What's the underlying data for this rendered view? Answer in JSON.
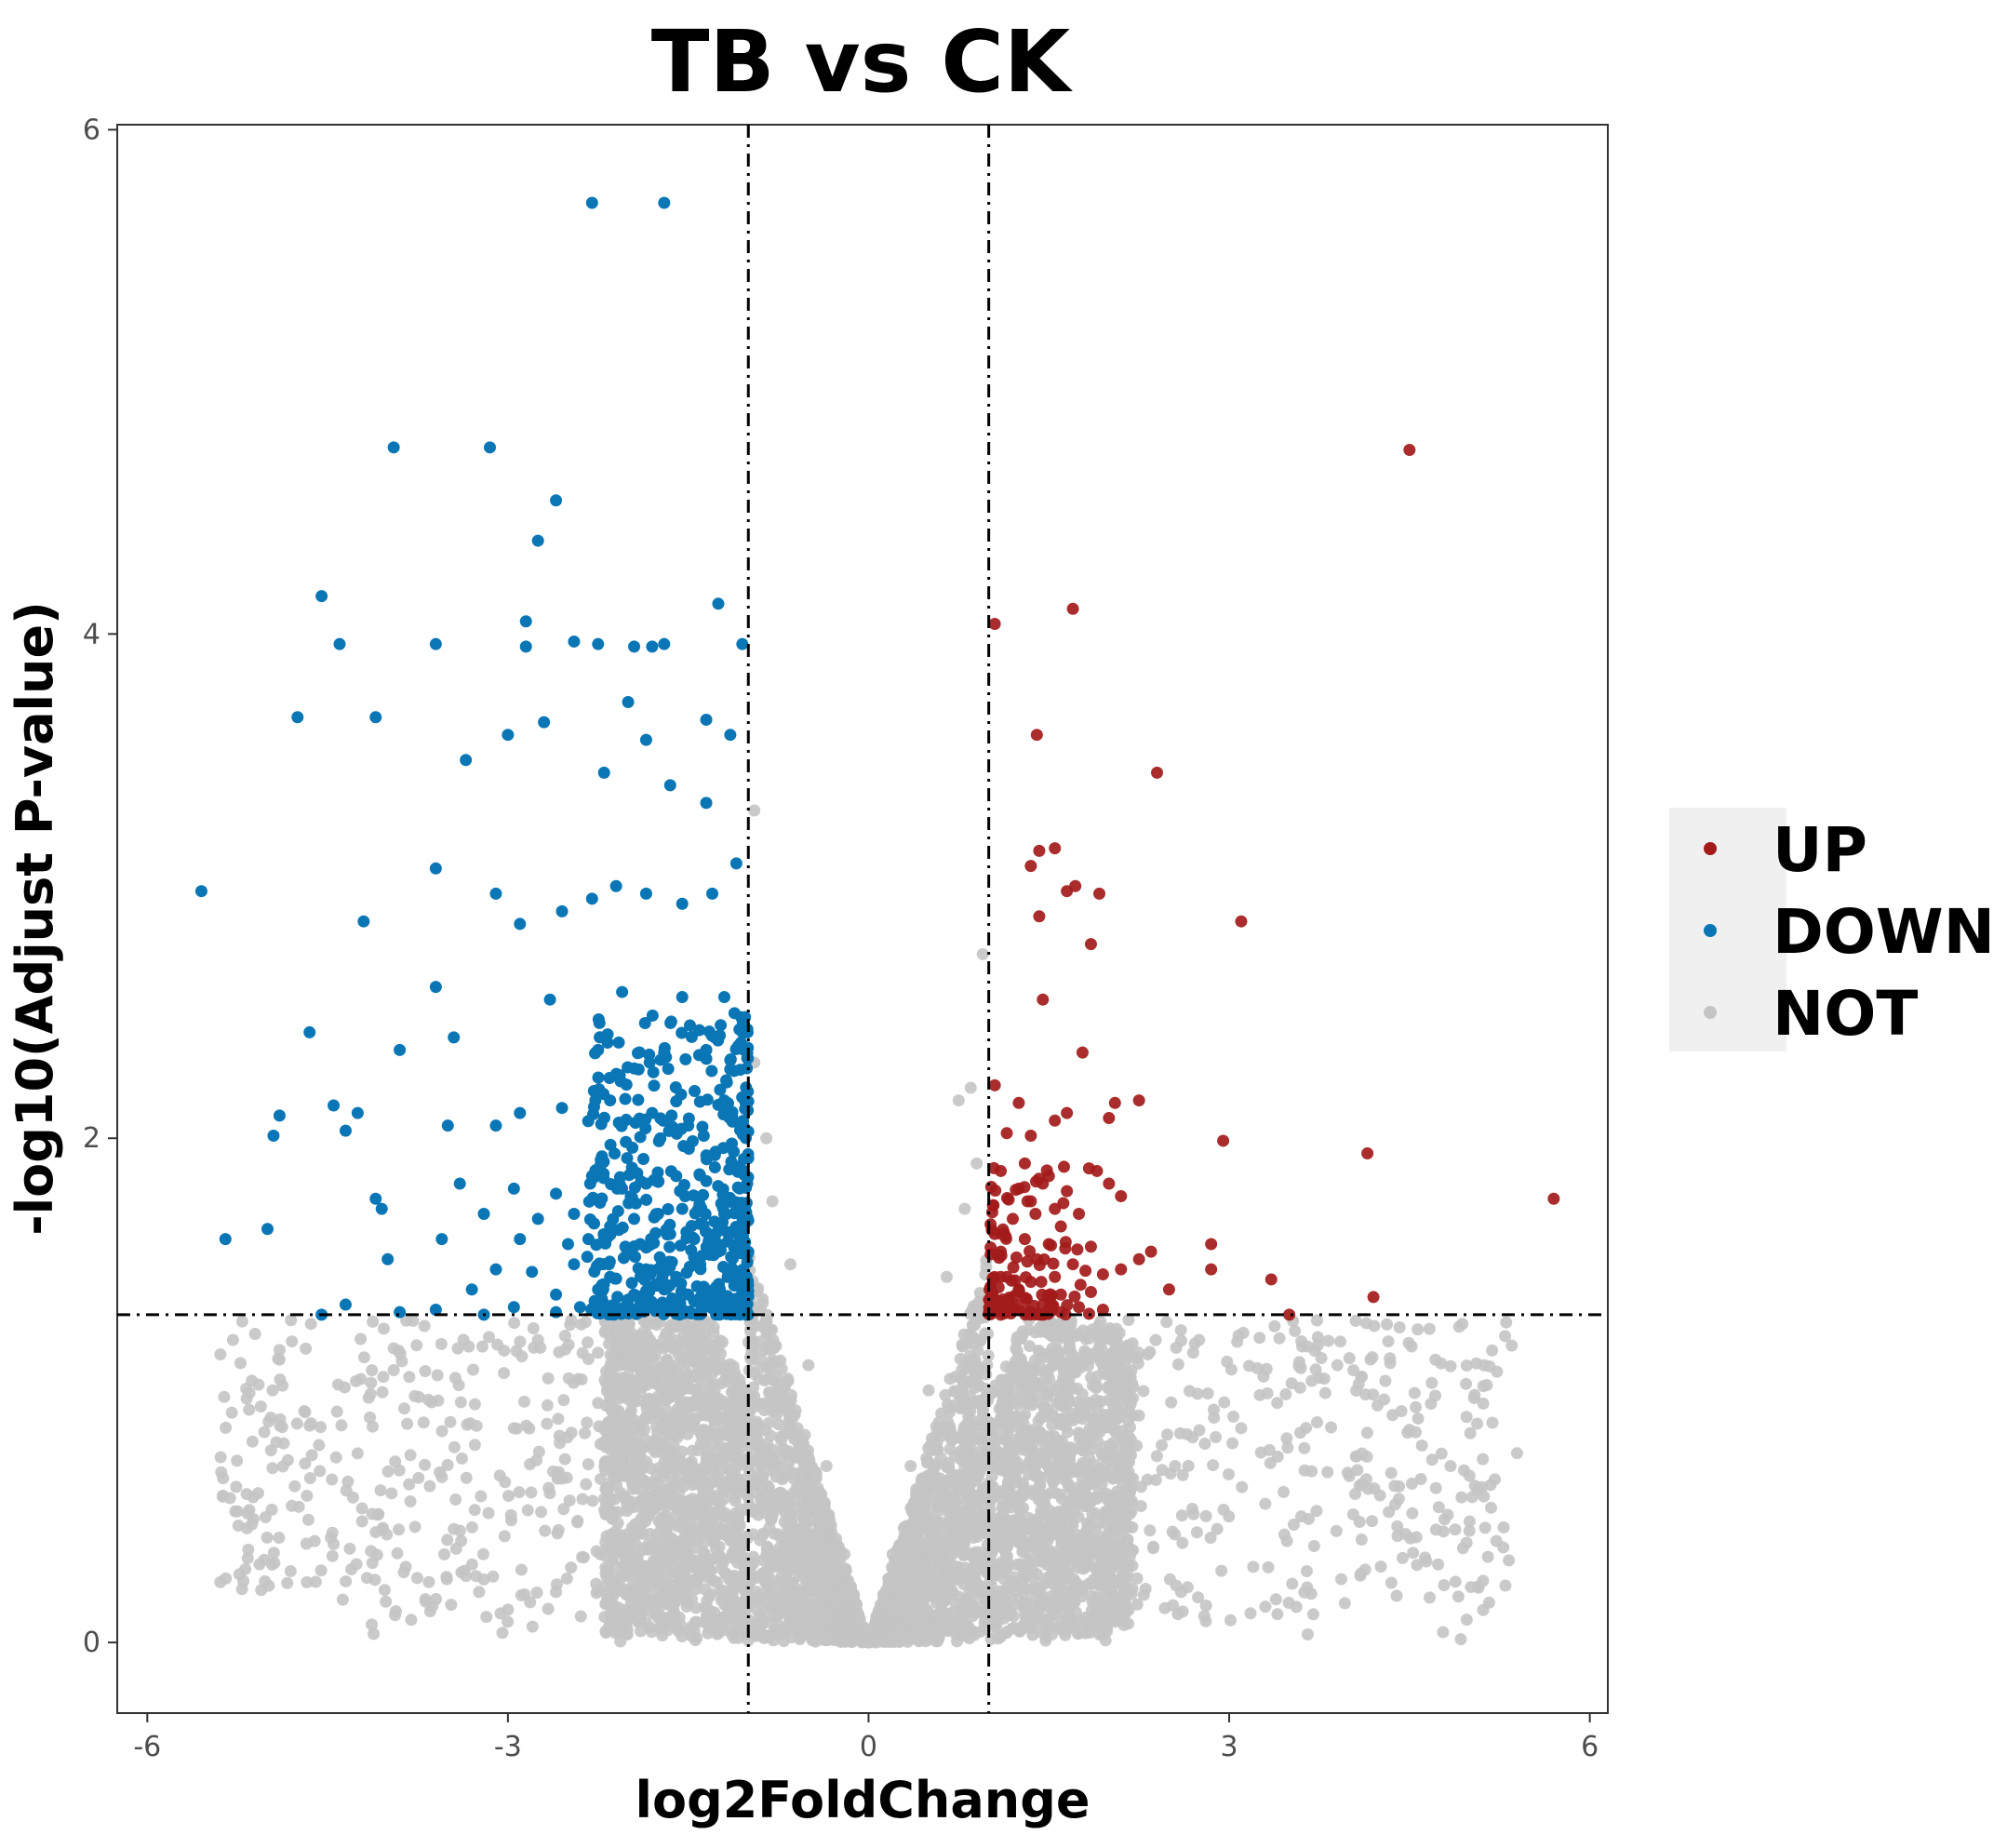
{
  "chart_data": {
    "type": "scatter",
    "title": "TB vs CK",
    "xlabel": "log2FoldChange",
    "ylabel": "-log10(Adjust P-value)",
    "xlim": [
      -6.25,
      6.15
    ],
    "ylim": [
      -0.28,
      6.02
    ],
    "x_ticks": [
      -6,
      -3,
      0,
      3,
      6
    ],
    "y_ticks": [
      0,
      2,
      4,
      6
    ],
    "thresholds": {
      "log2fc": [
        -1,
        1
      ],
      "neg_log10_p": 1.3
    },
    "grid": false,
    "legend_position": "right",
    "legend": [
      {
        "name": "UP",
        "color": "#a31a1a"
      },
      {
        "name": "DOWN",
        "color": "#0a76b5"
      },
      {
        "name": "NOT",
        "color": "#c4c4c4"
      }
    ],
    "series": [
      {
        "name": "UP",
        "color": "#a31a1a",
        "points": [
          [
            4.5,
            4.73
          ],
          [
            1.7,
            4.1
          ],
          [
            1.05,
            4.04
          ],
          [
            1.4,
            3.6
          ],
          [
            2.4,
            3.45
          ],
          [
            1.55,
            3.15
          ],
          [
            1.42,
            3.14
          ],
          [
            1.35,
            3.08
          ],
          [
            1.65,
            2.98
          ],
          [
            1.72,
            3.0
          ],
          [
            1.92,
            2.97
          ],
          [
            3.1,
            2.86
          ],
          [
            1.42,
            2.88
          ],
          [
            1.85,
            2.77
          ],
          [
            1.45,
            2.55
          ],
          [
            1.78,
            2.34
          ],
          [
            2.25,
            2.15
          ],
          [
            2.05,
            2.14
          ],
          [
            2.0,
            2.08
          ],
          [
            1.05,
            2.21
          ],
          [
            1.25,
            2.14
          ],
          [
            1.65,
            2.1
          ],
          [
            1.55,
            2.07
          ],
          [
            2.95,
            1.99
          ],
          [
            1.15,
            2.02
          ],
          [
            1.35,
            2.01
          ],
          [
            4.15,
            1.94
          ],
          [
            1.1,
            1.87
          ],
          [
            1.3,
            1.9
          ],
          [
            1.5,
            1.85
          ],
          [
            1.9,
            1.87
          ],
          [
            2.0,
            1.82
          ],
          [
            1.25,
            1.8
          ],
          [
            1.45,
            1.82
          ],
          [
            1.65,
            1.79
          ],
          [
            2.1,
            1.77
          ],
          [
            5.7,
            1.76
          ],
          [
            1.35,
            1.75
          ],
          [
            1.55,
            1.72
          ],
          [
            1.75,
            1.7
          ],
          [
            1.2,
            1.68
          ],
          [
            1.6,
            1.65
          ],
          [
            1.05,
            1.62
          ],
          [
            1.3,
            1.6
          ],
          [
            1.5,
            1.58
          ],
          [
            1.85,
            1.57
          ],
          [
            2.85,
            1.58
          ],
          [
            2.35,
            1.55
          ],
          [
            1.1,
            1.55
          ],
          [
            1.4,
            1.52
          ],
          [
            1.7,
            1.5
          ],
          [
            2.1,
            1.48
          ],
          [
            2.25,
            1.52
          ],
          [
            2.85,
            1.48
          ],
          [
            1.15,
            1.45
          ],
          [
            1.35,
            1.43
          ],
          [
            1.55,
            1.45
          ],
          [
            1.95,
            1.46
          ],
          [
            3.35,
            1.44
          ],
          [
            1.25,
            1.4
          ],
          [
            1.6,
            1.38
          ],
          [
            1.85,
            1.39
          ],
          [
            2.5,
            1.4
          ],
          [
            1.05,
            1.35
          ],
          [
            1.45,
            1.34
          ],
          [
            1.75,
            1.33
          ],
          [
            4.2,
            1.37
          ],
          [
            1.15,
            1.32
          ],
          [
            1.35,
            1.31
          ],
          [
            1.6,
            1.31
          ],
          [
            1.95,
            1.32
          ],
          [
            3.5,
            1.3
          ]
        ]
      },
      {
        "name": "DOWN",
        "color": "#0a76b5",
        "points": [
          [
            -2.3,
            5.71
          ],
          [
            -1.7,
            5.71
          ],
          [
            -3.95,
            4.74
          ],
          [
            -3.15,
            4.74
          ],
          [
            -2.6,
            4.53
          ],
          [
            -2.75,
            4.37
          ],
          [
            -4.55,
            4.15
          ],
          [
            -1.25,
            4.12
          ],
          [
            -2.85,
            4.05
          ],
          [
            -4.4,
            3.96
          ],
          [
            -3.6,
            3.96
          ],
          [
            -2.85,
            3.95
          ],
          [
            -2.45,
            3.97
          ],
          [
            -2.25,
            3.96
          ],
          [
            -1.95,
            3.95
          ],
          [
            -1.8,
            3.95
          ],
          [
            -1.7,
            3.96
          ],
          [
            -1.05,
            3.96
          ],
          [
            -2.0,
            3.73
          ],
          [
            -4.75,
            3.67
          ],
          [
            -4.1,
            3.67
          ],
          [
            -2.7,
            3.65
          ],
          [
            -1.35,
            3.66
          ],
          [
            -1.15,
            3.6
          ],
          [
            -3.0,
            3.6
          ],
          [
            -1.85,
            3.58
          ],
          [
            -3.35,
            3.5
          ],
          [
            -2.2,
            3.45
          ],
          [
            -1.65,
            3.4
          ],
          [
            -1.35,
            3.33
          ],
          [
            -5.55,
            2.98
          ],
          [
            -3.6,
            3.07
          ],
          [
            -4.2,
            2.86
          ],
          [
            -3.1,
            2.97
          ],
          [
            -2.9,
            2.85
          ],
          [
            -2.55,
            2.9
          ],
          [
            -2.3,
            2.95
          ],
          [
            -2.1,
            3.0
          ],
          [
            -1.85,
            2.97
          ],
          [
            -1.55,
            2.93
          ],
          [
            -1.3,
            2.97
          ],
          [
            -1.1,
            3.09
          ],
          [
            -3.6,
            2.6
          ],
          [
            -2.65,
            2.55
          ],
          [
            -2.05,
            2.58
          ],
          [
            -1.55,
            2.56
          ],
          [
            -1.2,
            2.56
          ],
          [
            -4.65,
            2.42
          ],
          [
            -3.45,
            2.4
          ],
          [
            -3.9,
            2.35
          ],
          [
            -2.25,
            2.35
          ],
          [
            -1.7,
            2.34
          ],
          [
            -1.35,
            2.35
          ],
          [
            -4.9,
            2.09
          ],
          [
            -4.95,
            2.01
          ],
          [
            -4.45,
            2.13
          ],
          [
            -4.25,
            2.1
          ],
          [
            -4.35,
            2.03
          ],
          [
            -3.5,
            2.05
          ],
          [
            -3.1,
            2.05
          ],
          [
            -2.9,
            2.1
          ],
          [
            -2.55,
            2.12
          ],
          [
            -2.15,
            2.15
          ],
          [
            -1.8,
            2.1
          ],
          [
            -1.5,
            2.05
          ],
          [
            -1.2,
            2.15
          ],
          [
            -3.4,
            1.82
          ],
          [
            -2.95,
            1.8
          ],
          [
            -2.6,
            1.78
          ],
          [
            -2.3,
            1.85
          ],
          [
            -2.05,
            1.8
          ],
          [
            -1.85,
            1.82
          ],
          [
            -1.6,
            1.85
          ],
          [
            -1.35,
            1.83
          ],
          [
            -1.1,
            1.88
          ],
          [
            -4.1,
            1.76
          ],
          [
            -4.05,
            1.72
          ],
          [
            -3.2,
            1.7
          ],
          [
            -2.75,
            1.68
          ],
          [
            -2.45,
            1.7
          ],
          [
            -2.15,
            1.65
          ],
          [
            -1.95,
            1.68
          ],
          [
            -1.75,
            1.7
          ],
          [
            -1.55,
            1.72
          ],
          [
            -1.4,
            1.66
          ],
          [
            -1.2,
            1.7
          ],
          [
            -5.0,
            1.64
          ],
          [
            -5.35,
            1.6
          ],
          [
            -3.55,
            1.6
          ],
          [
            -2.9,
            1.6
          ],
          [
            -2.5,
            1.58
          ],
          [
            -2.2,
            1.6
          ],
          [
            -1.9,
            1.58
          ],
          [
            -1.65,
            1.62
          ],
          [
            -1.45,
            1.6
          ],
          [
            -1.25,
            1.55
          ],
          [
            -1.05,
            1.58
          ],
          [
            -4.0,
            1.52
          ],
          [
            -3.1,
            1.48
          ],
          [
            -2.8,
            1.47
          ],
          [
            -2.45,
            1.5
          ],
          [
            -2.15,
            1.45
          ],
          [
            -1.85,
            1.48
          ],
          [
            -1.6,
            1.45
          ],
          [
            -1.4,
            1.5
          ],
          [
            -1.15,
            1.46
          ],
          [
            -3.3,
            1.4
          ],
          [
            -2.6,
            1.38
          ],
          [
            -2.25,
            1.4
          ],
          [
            -1.95,
            1.38
          ],
          [
            -1.7,
            1.4
          ],
          [
            -1.5,
            1.38
          ],
          [
            -1.25,
            1.4
          ],
          [
            -1.05,
            1.37
          ],
          [
            -4.35,
            1.34
          ],
          [
            -3.6,
            1.32
          ],
          [
            -2.95,
            1.33
          ],
          [
            -2.4,
            1.33
          ],
          [
            -2.05,
            1.32
          ],
          [
            -1.8,
            1.34
          ],
          [
            -1.55,
            1.32
          ],
          [
            -1.3,
            1.33
          ],
          [
            -1.1,
            1.32
          ],
          [
            -4.55,
            1.3
          ],
          [
            -3.9,
            1.31
          ],
          [
            -3.2,
            1.3
          ],
          [
            -2.6,
            1.31
          ]
        ]
      },
      {
        "name": "NOT",
        "color": "#c4c4c4",
        "points": [
          [
            -0.95,
            3.3
          ],
          [
            0.95,
            2.73
          ],
          [
            -0.95,
            2.3
          ],
          [
            0.85,
            2.2
          ],
          [
            -0.85,
            2.0
          ],
          [
            0.75,
            2.15
          ],
          [
            0.9,
            1.9
          ],
          [
            -0.8,
            1.75
          ],
          [
            0.8,
            1.72
          ],
          [
            -0.65,
            1.5
          ],
          [
            0.65,
            1.45
          ],
          [
            -0.5,
            1.1
          ],
          [
            0.5,
            1.0
          ],
          [
            -0.35,
            0.7
          ],
          [
            0.35,
            0.7
          ],
          [
            -0.2,
            0.35
          ],
          [
            0.2,
            0.35
          ],
          [
            -0.1,
            0.15
          ],
          [
            0.1,
            0.15
          ],
          [
            0.0,
            0.02
          ],
          [
            -4.9,
            1.16
          ],
          [
            -5.15,
            0.99
          ],
          [
            -4.65,
            0.86
          ],
          [
            -5.25,
            0.52
          ],
          [
            -4.45,
            0.39
          ],
          [
            -3.95,
            1.08
          ],
          [
            -4.25,
            0.75
          ],
          [
            -3.65,
            0.62
          ],
          [
            -3.45,
            0.45
          ],
          [
            -3.85,
            0.3
          ],
          [
            -2.95,
            0.85
          ],
          [
            -2.75,
            1.2
          ],
          [
            -2.55,
            0.65
          ],
          [
            -2.25,
            0.95
          ],
          [
            -1.95,
            0.8
          ],
          [
            -1.75,
            0.55
          ],
          [
            -2.1,
            0.4
          ],
          [
            -1.55,
            0.3
          ],
          [
            -1.35,
            0.9
          ],
          [
            -1.2,
            0.6
          ],
          [
            -3.2,
            0.25
          ],
          [
            -2.6,
            0.2
          ],
          [
            -1.9,
            0.15
          ],
          [
            4.0,
            0.66
          ],
          [
            5.0,
            0.48
          ],
          [
            3.75,
            1.05
          ],
          [
            3.4,
            0.95
          ],
          [
            3.6,
            0.5
          ],
          [
            3.1,
            0.85
          ],
          [
            2.75,
            1.2
          ],
          [
            2.55,
            0.7
          ],
          [
            2.25,
            0.9
          ],
          [
            1.95,
            0.75
          ],
          [
            1.75,
            0.55
          ],
          [
            2.15,
            0.4
          ],
          [
            1.55,
            0.3
          ],
          [
            1.35,
            0.95
          ],
          [
            1.2,
            0.65
          ],
          [
            3.2,
            0.3
          ],
          [
            2.6,
            0.2
          ],
          [
            1.9,
            0.15
          ],
          [
            3.9,
            1.1
          ],
          [
            3.3,
            0.55
          ],
          [
            2.9,
            0.45
          ]
        ]
      }
    ]
  }
}
